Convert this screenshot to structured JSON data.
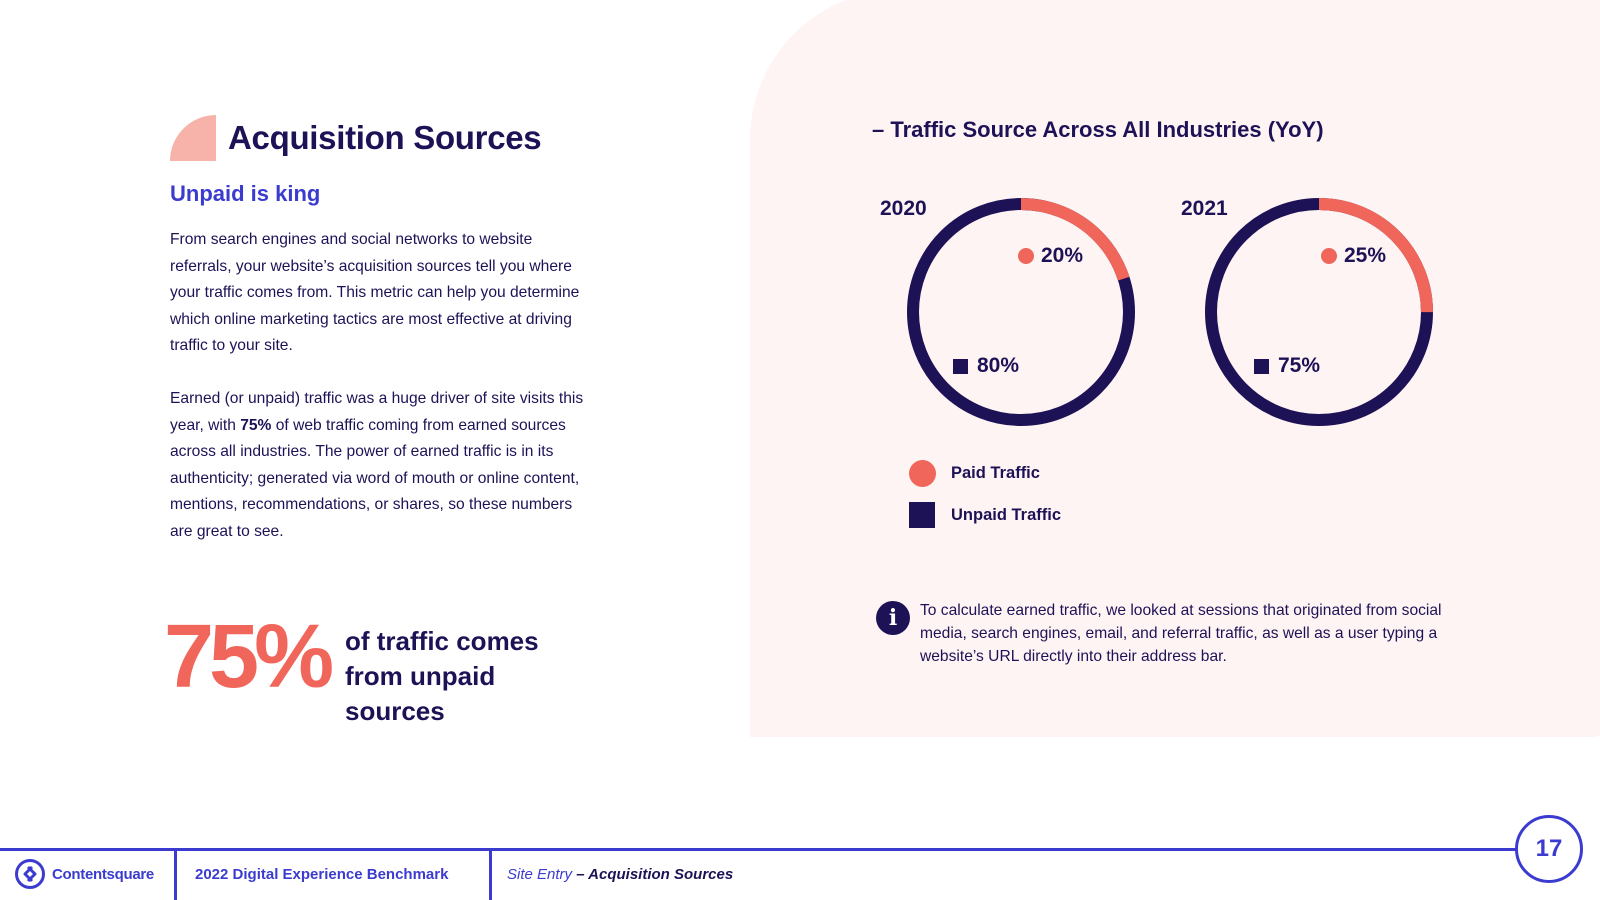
{
  "heading": {
    "title": "Acquisition Sources",
    "subtitle": "Unpaid is king"
  },
  "body": {
    "paragraph1": "From search engines and social networks to website referrals, your website’s acquisition sources tell you where your traffic comes from. This metric can help you determine which online marketing tactics are most effective at driving traffic to your site.",
    "paragraph2_before": "Earned (or unpaid) traffic was a huge driver of site visits this year, with ",
    "paragraph2_bold": "75%",
    "paragraph2_after": " of web traffic coming from earned sources across all industries. The power of earned traffic is in its authenticity; generated via word of mouth or online content, mentions, recommendations, or shares, so these numbers are great to see."
  },
  "highlight": {
    "value": "75%",
    "text": "of traffic comes from unpaid sources"
  },
  "chart_data": {
    "type": "pie",
    "title": "– Traffic Source Across All Industries (YoY)",
    "charts": [
      {
        "year": "2020",
        "paid": 20,
        "unpaid": 80,
        "paid_label": "20%",
        "unpaid_label": "80%"
      },
      {
        "year": "2021",
        "paid": 25,
        "unpaid": 75,
        "paid_label": "25%",
        "unpaid_label": "75%"
      }
    ],
    "legend": [
      "Paid Traffic",
      "Unpaid Traffic"
    ]
  },
  "colors": {
    "paid": "#f0665a",
    "unpaid": "#1d1256",
    "accent": "#3b3ccf"
  },
  "info": {
    "icon": "info-icon",
    "text": "To calculate earned traffic, we looked at sessions that originated from social media, search engines, email, and referral traffic, as well as a user typing a website’s URL directly into their address bar."
  },
  "footer": {
    "logo": "Contentsquare",
    "report": "2022 Digital Experience Benchmark",
    "section": "Site Entry",
    "current": "– Acquisition Sources",
    "page": "17"
  }
}
